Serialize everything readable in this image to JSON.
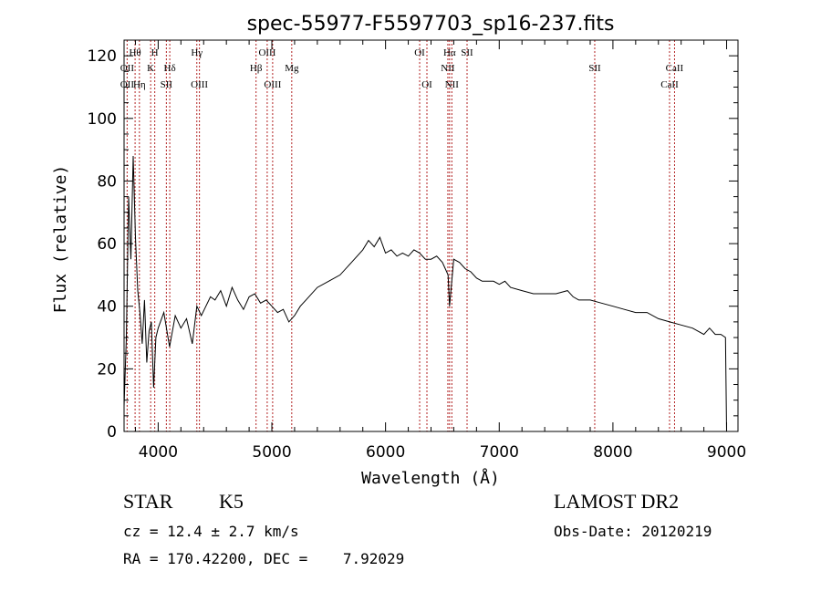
{
  "chart_data": {
    "type": "line",
    "title": "spec-55977-F5597703_sp16-237.fits",
    "xlabel": "Wavelength (Å)",
    "ylabel": "Flux (relative)",
    "xlim": [
      3700,
      9100
    ],
    "ylim": [
      0,
      125
    ],
    "xticks": [
      4000,
      5000,
      6000,
      7000,
      8000,
      9000
    ],
    "yticks": [
      0,
      20,
      40,
      60,
      80,
      100,
      120
    ],
    "grid": false,
    "series": [
      {
        "x": [
          3700,
          3720,
          3740,
          3760,
          3780,
          3800,
          3820,
          3840,
          3860,
          3880,
          3900,
          3920,
          3940,
          3960,
          3980,
          4000,
          4050,
          4100,
          4150,
          4200,
          4250,
          4300,
          4340,
          4380,
          4420,
          4460,
          4500,
          4550,
          4600,
          4650,
          4700,
          4750,
          4800,
          4850,
          4900,
          4950,
          5000,
          5050,
          5100,
          5150,
          5200,
          5250,
          5300,
          5400,
          5500,
          5600,
          5700,
          5800,
          5850,
          5900,
          5950,
          6000,
          6050,
          6100,
          6150,
          6200,
          6250,
          6300,
          6350,
          6400,
          6450,
          6500,
          6550,
          6563,
          6600,
          6650,
          6700,
          6750,
          6800,
          6850,
          6900,
          6950,
          7000,
          7050,
          7100,
          7200,
          7300,
          7400,
          7500,
          7600,
          7650,
          7700,
          7800,
          7900,
          8000,
          8100,
          8200,
          8300,
          8400,
          8500,
          8600,
          8700,
          8800,
          8850,
          8900,
          8950,
          8990,
          9000
        ],
        "y": [
          8,
          30,
          75,
          55,
          88,
          62,
          45,
          38,
          28,
          42,
          22,
          32,
          35,
          14,
          30,
          33,
          38,
          27,
          37,
          33,
          36,
          28,
          40,
          37,
          40,
          43,
          42,
          45,
          40,
          46,
          42,
          39,
          43,
          44,
          41,
          42,
          40,
          38,
          39,
          35,
          37,
          40,
          42,
          46,
          48,
          50,
          54,
          58,
          61,
          59,
          62,
          57,
          58,
          56,
          57,
          56,
          58,
          57,
          55,
          55,
          56,
          54,
          50,
          40,
          55,
          54,
          52,
          51,
          49,
          48,
          48,
          48,
          47,
          48,
          46,
          45,
          44,
          44,
          44,
          45,
          43,
          42,
          42,
          41,
          40,
          39,
          38,
          38,
          36,
          35,
          34,
          33,
          31,
          33,
          31,
          31,
          30,
          0
        ]
      }
    ],
    "line_labels": [
      {
        "label": "Hθ",
        "x": 3797,
        "row": 0
      },
      {
        "label": "H",
        "x": 3970,
        "row": 0
      },
      {
        "label": "Hγ",
        "x": 4340,
        "row": 0
      },
      {
        "label": "OIII",
        "x": 4959,
        "row": 0
      },
      {
        "label": "OI",
        "x": 6300,
        "row": 0
      },
      {
        "label": "Hα",
        "x": 6563,
        "row": 0
      },
      {
        "label": "SII",
        "x": 6717,
        "row": 0
      },
      {
        "label": "OII",
        "x": 3727,
        "row": 1
      },
      {
        "label": "K",
        "x": 3934,
        "row": 1
      },
      {
        "label": "Hδ",
        "x": 4102,
        "row": 1
      },
      {
        "label": "Hβ",
        "x": 4861,
        "row": 1
      },
      {
        "label": "Mg",
        "x": 5175,
        "row": 1
      },
      {
        "label": "NII",
        "x": 6548,
        "row": 1
      },
      {
        "label": "SII",
        "x": 7840,
        "row": 1
      },
      {
        "label": "CaII",
        "x": 8542,
        "row": 1
      },
      {
        "label": "OII",
        "x": 3727,
        "row": 2
      },
      {
        "label": "Hη",
        "x": 3835,
        "row": 2
      },
      {
        "label": "SII",
        "x": 4072,
        "row": 2
      },
      {
        "label": "OIII",
        "x": 4363,
        "row": 2
      },
      {
        "label": "OIII",
        "x": 5007,
        "row": 2
      },
      {
        "label": "OI",
        "x": 6364,
        "row": 2
      },
      {
        "label": "NII",
        "x": 6583,
        "row": 2
      },
      {
        "label": "CaII",
        "x": 8498,
        "row": 2
      }
    ]
  },
  "info": {
    "object_class": "STAR",
    "subclass": "K5",
    "survey": "LAMOST DR2",
    "velocity": "cz = 12.4 ± 2.7 km/s",
    "obs_date": "Obs-Date: 20120219",
    "coords": "RA = 170.42200, DEC =    7.92029"
  },
  "colors": {
    "line_marker": "#b22222",
    "spectrum": "#000000"
  }
}
